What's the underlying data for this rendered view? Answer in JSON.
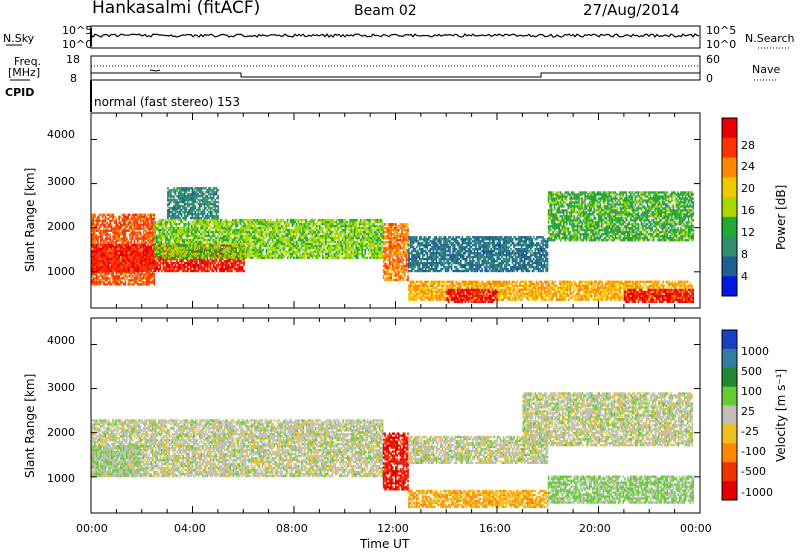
{
  "header": {
    "radar": "Hankasalmi (fitACF)",
    "beam": "Beam 02",
    "date": "27/Aug/2014"
  },
  "top_strip": {
    "nsky_label": "N.Sky",
    "nsearch_label": "N.Search",
    "left_ticks": [
      "10^5",
      "10^0"
    ],
    "right_ticks": [
      "10^5",
      "10^0"
    ]
  },
  "freq_strip": {
    "label_line1": "Freq.",
    "label_line2": "[MHz]",
    "left_ticks": [
      "18",
      "8"
    ],
    "right_ticks": [
      "60",
      "0"
    ],
    "nave_label": "Nave"
  },
  "cpid": {
    "label": "CPID",
    "text": "normal (fast stereo) 153"
  },
  "axes": {
    "ylabel": "Slant Range [km]",
    "yticks": [
      "4000",
      "3000",
      "2000",
      "1000"
    ],
    "xticks": [
      "00:00",
      "04:00",
      "08:00",
      "12:00",
      "16:00",
      "20:00",
      "00:00"
    ],
    "xlabel": "Time UT"
  },
  "power_scale": {
    "label": "Power [dB]",
    "ticks": [
      "28",
      "24",
      "20",
      "16",
      "12",
      "8",
      "4"
    ],
    "colors": [
      "#e60000",
      "#ff3300",
      "#ff8800",
      "#f0c800",
      "#a8d800",
      "#22a833",
      "#2f8f6f",
      "#206090",
      "#0018e0"
    ]
  },
  "velocity_scale": {
    "label": "Velocity [m s⁻¹]",
    "ticks": [
      "1000",
      "500",
      "100",
      "25",
      "-25",
      "-100",
      "-500",
      "-1000"
    ],
    "colors": [
      "#1840c0",
      "#2f7fa0",
      "#228833",
      "#66cc33",
      "#c0c0b8",
      "#f0c020",
      "#ff8800",
      "#ee3300",
      "#e00000"
    ]
  },
  "chart_data": [
    {
      "type": "heatmap",
      "name": "power",
      "xlabel": "Time UT",
      "ylabel": "Slant Range [km]",
      "xlim_hours": [
        0,
        24
      ],
      "ylim_km": [
        180,
        4600
      ],
      "colorbar": {
        "label": "Power [dB]",
        "range": [
          0,
          30
        ]
      },
      "regions": [
        {
          "t": [
            0,
            2.5
          ],
          "r": [
            700,
            2300
          ],
          "value": 24
        },
        {
          "t": [
            0,
            6
          ],
          "r": [
            1000,
            1600
          ],
          "value": 27
        },
        {
          "t": [
            2.5,
            11.5
          ],
          "r": [
            1300,
            2200
          ],
          "value": 14
        },
        {
          "t": [
            3,
            5
          ],
          "r": [
            2200,
            2900
          ],
          "value": 8
        },
        {
          "t": [
            11.5,
            12.5
          ],
          "r": [
            800,
            2100
          ],
          "value": 22
        },
        {
          "t": [
            12.5,
            23.7
          ],
          "r": [
            350,
            800
          ],
          "value": 20
        },
        {
          "t": [
            14,
            16
          ],
          "r": [
            300,
            600
          ],
          "value": 28
        },
        {
          "t": [
            12.5,
            18
          ],
          "r": [
            1000,
            1800
          ],
          "value": 6
        },
        {
          "t": [
            18,
            23.7
          ],
          "r": [
            1700,
            2800
          ],
          "value": 12
        },
        {
          "t": [
            21,
            23.7
          ],
          "r": [
            300,
            600
          ],
          "value": 27
        }
      ]
    },
    {
      "type": "heatmap",
      "name": "velocity",
      "xlabel": "Time UT",
      "ylabel": "Slant Range [km]",
      "xlim_hours": [
        0,
        24
      ],
      "ylim_km": [
        180,
        4600
      ],
      "colorbar": {
        "label": "Velocity [m s⁻¹]",
        "range": [
          -1000,
          1000
        ]
      },
      "regions": [
        {
          "t": [
            0,
            11.5
          ],
          "r": [
            1000,
            2300
          ],
          "value": 0
        },
        {
          "t": [
            0,
            2
          ],
          "r": [
            1000,
            1700
          ],
          "value": 80
        },
        {
          "t": [
            11.5,
            12.5
          ],
          "r": [
            700,
            2000
          ],
          "value": -800
        },
        {
          "t": [
            12.5,
            18
          ],
          "r": [
            1300,
            1900
          ],
          "value": 0
        },
        {
          "t": [
            12.5,
            18
          ],
          "r": [
            300,
            700
          ],
          "value": -300
        },
        {
          "t": [
            18,
            23.7
          ],
          "r": [
            400,
            1000
          ],
          "value": 150
        },
        {
          "t": [
            17,
            23.7
          ],
          "r": [
            1700,
            2900
          ],
          "value": 0
        }
      ]
    }
  ]
}
